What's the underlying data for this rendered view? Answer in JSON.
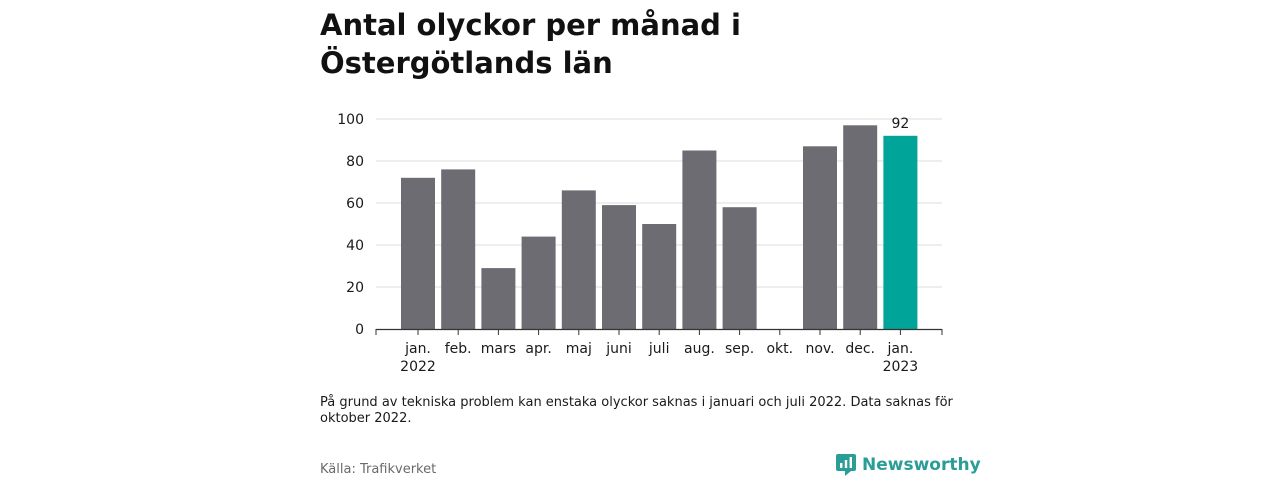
{
  "title": "Antal olyckor per månad i Östergötlands län",
  "note": "På grund av tekniska problem kan enstaka olyckor saknas i januari och juli 2022. Data saknas för oktober 2022.",
  "source": "Källa: Trafikverket",
  "brand": {
    "name": "Newsworthy",
    "icon": "newsworthy-logo-icon",
    "color": "#2a9d96"
  },
  "colors": {
    "bar": "#6d6c73",
    "highlight": "#00a499",
    "grid": "#dcdcdc",
    "axis": "#333333"
  },
  "chart_data": {
    "type": "bar",
    "title": "Antal olyckor per månad i Östergötlands län",
    "xlabel": "",
    "ylabel": "",
    "ylim": [
      0,
      100
    ],
    "yticks": [
      0,
      20,
      40,
      60,
      80,
      100
    ],
    "grid": true,
    "categories": [
      [
        "jan.",
        "2022"
      ],
      [
        "feb."
      ],
      [
        "mars"
      ],
      [
        "apr."
      ],
      [
        "maj"
      ],
      [
        "juni"
      ],
      [
        "juli"
      ],
      [
        "aug."
      ],
      [
        "sep."
      ],
      [
        "okt."
      ],
      [
        "nov."
      ],
      [
        "dec."
      ],
      [
        "jan.",
        "2023"
      ]
    ],
    "values": [
      72,
      76,
      29,
      44,
      66,
      59,
      50,
      85,
      58,
      null,
      87,
      97,
      92
    ],
    "highlight_index": 12,
    "data_labels": [
      {
        "index": 12,
        "text": "92"
      }
    ]
  }
}
